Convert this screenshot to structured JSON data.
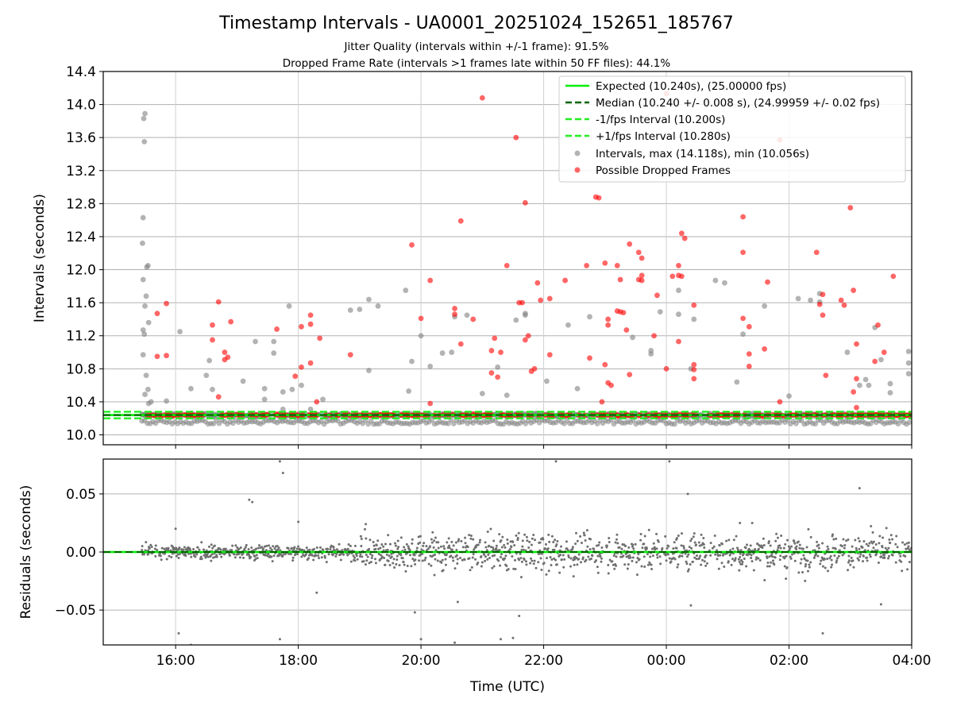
{
  "chart_data": [
    {
      "type": "scatter",
      "title": "Timestamp Intervals - UA0001_20251024_152651_185767",
      "subtitle_lines": [
        "Jitter Quality (intervals within +/-1 frame): 91.5%",
        "Dropped Frame Rate (intervals >1 frames late within 50 FF files): 44.1%"
      ],
      "xlabel": "",
      "ylabel": "Intervals (seconds)",
      "xlim_hours": [
        14.82,
        28.0
      ],
      "ylim": [
        9.88,
        14.4
      ],
      "yticks": [
        10.0,
        10.4,
        10.8,
        11.2,
        11.6,
        12.0,
        12.4,
        12.8,
        13.2,
        13.6,
        14.0,
        14.4
      ],
      "ytick_labels": [
        "10.0",
        "10.4",
        "10.8",
        "11.2",
        "11.6",
        "12.0",
        "12.4",
        "12.8",
        "13.2",
        "13.6",
        "14.0",
        "14.4"
      ],
      "grid": true,
      "legend_position": "top-right",
      "legend": [
        {
          "label": "Expected (10.240s), (25.00000 fps)",
          "style": "solid",
          "color": "#00ee00"
        },
        {
          "label": "Median (10.240 +/- 0.008 s), (24.99959 +/- 0.02 fps)",
          "style": "dashed",
          "color": "#006400"
        },
        {
          "label": "-1/fps Interval (10.200s)",
          "style": "dashed",
          "color": "#22ee22"
        },
        {
          "label": "+1/fps Interval (10.280s)",
          "style": "dashed",
          "color": "#22ee22"
        },
        {
          "label": "Intervals, max (14.118s), min (10.056s)",
          "style": "marker",
          "color": "#808080"
        },
        {
          "label": "Possible Dropped Frames",
          "style": "marker",
          "color": "#ff0000"
        }
      ],
      "reference_lines": {
        "expected": 10.24,
        "median": 10.24,
        "lower": 10.2,
        "upper": 10.28
      },
      "time_range_hours": [
        15.45,
        28.0
      ],
      "series": [
        {
          "name": "Intervals, max (14.118s), min (10.056s)",
          "color": "#808080",
          "points": [
            [
              15.5,
              13.89
            ],
            [
              15.48,
              13.83
            ],
            [
              15.49,
              13.55
            ],
            [
              15.47,
              12.63
            ],
            [
              15.46,
              12.32
            ],
            [
              15.55,
              12.05
            ],
            [
              15.53,
              12.03
            ],
            [
              15.47,
              11.88
            ],
            [
              15.52,
              11.68
            ],
            [
              15.5,
              11.56
            ],
            [
              15.56,
              11.36
            ],
            [
              15.47,
              11.27
            ],
            [
              15.49,
              11.22
            ],
            [
              15.47,
              10.97
            ],
            [
              15.52,
              10.72
            ],
            [
              15.55,
              10.55
            ],
            [
              15.5,
              10.49
            ],
            [
              15.56,
              10.38
            ],
            [
              15.6,
              10.4
            ],
            [
              15.85,
              10.41
            ],
            [
              16.07,
              11.25
            ],
            [
              16.25,
              10.56
            ],
            [
              16.5,
              10.72
            ],
            [
              16.6,
              10.55
            ],
            [
              16.55,
              10.9
            ],
            [
              17.1,
              10.65
            ],
            [
              17.3,
              11.13
            ],
            [
              17.45,
              10.56
            ],
            [
              17.45,
              10.43
            ],
            [
              17.6,
              11.13
            ],
            [
              17.6,
              10.99
            ],
            [
              17.75,
              10.31
            ],
            [
              17.75,
              10.52
            ],
            [
              17.85,
              11.56
            ],
            [
              17.9,
              10.55
            ],
            [
              18.05,
              10.6
            ],
            [
              18.2,
              10.31
            ],
            [
              18.4,
              10.43
            ],
            [
              18.85,
              11.51
            ],
            [
              19.0,
              11.52
            ],
            [
              19.15,
              11.64
            ],
            [
              19.15,
              10.78
            ],
            [
              19.3,
              11.56
            ],
            [
              19.75,
              11.75
            ],
            [
              19.8,
              10.53
            ],
            [
              19.85,
              10.89
            ],
            [
              20.0,
              11.2
            ],
            [
              20.15,
              10.83
            ],
            [
              20.35,
              10.99
            ],
            [
              20.55,
              11.43
            ],
            [
              20.5,
              11.0
            ],
            [
              20.75,
              11.45
            ],
            [
              21.0,
              10.5
            ],
            [
              21.25,
              10.82
            ],
            [
              21.4,
              10.48
            ],
            [
              21.55,
              11.39
            ],
            [
              21.7,
              11.47
            ],
            [
              21.7,
              11.45
            ],
            [
              22.05,
              10.65
            ],
            [
              22.4,
              11.33
            ],
            [
              22.55,
              10.56
            ],
            [
              22.75,
              11.43
            ],
            [
              23.45,
              11.18
            ],
            [
              23.75,
              11.02
            ],
            [
              23.75,
              10.98
            ],
            [
              23.9,
              11.49
            ],
            [
              24.2,
              11.46
            ],
            [
              24.2,
              11.75
            ],
            [
              24.45,
              11.4
            ],
            [
              24.4,
              10.8
            ],
            [
              24.8,
              11.87
            ],
            [
              24.95,
              11.84
            ],
            [
              25.15,
              10.64
            ],
            [
              25.25,
              11.22
            ],
            [
              25.6,
              11.56
            ],
            [
              26.0,
              10.47
            ],
            [
              26.15,
              11.65
            ],
            [
              26.35,
              11.63
            ],
            [
              26.5,
              11.61
            ],
            [
              26.5,
              11.71
            ],
            [
              26.95,
              11.0
            ],
            [
              27.15,
              10.6
            ],
            [
              27.25,
              10.67
            ],
            [
              27.3,
              10.6
            ],
            [
              27.4,
              11.3
            ],
            [
              27.5,
              10.91
            ],
            [
              27.65,
              10.51
            ],
            [
              27.65,
              10.62
            ],
            [
              27.95,
              11.01
            ],
            [
              27.95,
              10.87
            ],
            [
              27.95,
              10.74
            ]
          ]
        },
        {
          "name": "Possible Dropped Frames",
          "color": "#ff0000",
          "points": [
            [
              15.7,
              11.47
            ],
            [
              15.85,
              11.59
            ],
            [
              15.7,
              10.95
            ],
            [
              15.85,
              10.96
            ],
            [
              16.6,
              11.33
            ],
            [
              16.6,
              11.15
            ],
            [
              16.7,
              11.61
            ],
            [
              16.7,
              10.46
            ],
            [
              16.8,
              11.0
            ],
            [
              16.9,
              11.37
            ],
            [
              16.85,
              10.94
            ],
            [
              16.8,
              10.91
            ],
            [
              17.65,
              11.28
            ],
            [
              17.95,
              10.71
            ],
            [
              18.05,
              10.82
            ],
            [
              18.2,
              10.87
            ],
            [
              18.05,
              11.31
            ],
            [
              18.2,
              11.34
            ],
            [
              18.2,
              11.45
            ],
            [
              18.3,
              10.4
            ],
            [
              18.35,
              11.17
            ],
            [
              18.85,
              10.97
            ],
            [
              19.85,
              12.3
            ],
            [
              20.0,
              11.41
            ],
            [
              20.15,
              11.87
            ],
            [
              20.15,
              10.38
            ],
            [
              20.55,
              11.53
            ],
            [
              20.55,
              11.46
            ],
            [
              20.65,
              11.1
            ],
            [
              20.65,
              12.59
            ],
            [
              20.85,
              11.4
            ],
            [
              21.0,
              14.08
            ],
            [
              21.2,
              11.17
            ],
            [
              21.15,
              11.02
            ],
            [
              21.15,
              10.75
            ],
            [
              21.25,
              10.7
            ],
            [
              21.3,
              11.0
            ],
            [
              21.4,
              12.05
            ],
            [
              21.55,
              13.6
            ],
            [
              21.6,
              11.6
            ],
            [
              21.65,
              11.6
            ],
            [
              21.7,
              11.15
            ],
            [
              21.7,
              12.81
            ],
            [
              21.75,
              11.2
            ],
            [
              21.8,
              10.77
            ],
            [
              21.85,
              10.8
            ],
            [
              21.9,
              11.84
            ],
            [
              21.95,
              11.63
            ],
            [
              22.1,
              11.65
            ],
            [
              22.1,
              10.97
            ],
            [
              22.35,
              11.87
            ],
            [
              22.7,
              12.05
            ],
            [
              22.75,
              10.93
            ],
            [
              22.85,
              12.88
            ],
            [
              22.9,
              12.87
            ],
            [
              22.95,
              10.4
            ],
            [
              23.0,
              12.08
            ],
            [
              23.05,
              11.4
            ],
            [
              23.05,
              11.33
            ],
            [
              23.0,
              10.85
            ],
            [
              23.05,
              10.63
            ],
            [
              23.1,
              10.6
            ],
            [
              23.2,
              12.05
            ],
            [
              23.25,
              11.88
            ],
            [
              23.2,
              11.5
            ],
            [
              23.25,
              11.49
            ],
            [
              23.3,
              11.48
            ],
            [
              23.35,
              11.27
            ],
            [
              23.4,
              10.73
            ],
            [
              23.4,
              12.31
            ],
            [
              23.55,
              12.21
            ],
            [
              23.6,
              12.14
            ],
            [
              23.55,
              11.88
            ],
            [
              23.6,
              11.87
            ],
            [
              23.6,
              11.93
            ],
            [
              23.8,
              11.2
            ],
            [
              23.85,
              11.69
            ],
            [
              24.1,
              11.92
            ],
            [
              24.0,
              10.8
            ],
            [
              24.0,
              14.13
            ],
            [
              24.2,
              12.05
            ],
            [
              24.2,
              11.93
            ],
            [
              24.25,
              11.92
            ],
            [
              24.25,
              12.44
            ],
            [
              24.3,
              12.38
            ],
            [
              24.2,
              11.13
            ],
            [
              24.45,
              11.57
            ],
            [
              24.45,
              10.85
            ],
            [
              24.45,
              10.79
            ],
            [
              24.45,
              10.68
            ],
            [
              25.25,
              12.21
            ],
            [
              25.25,
              11.41
            ],
            [
              25.25,
              12.64
            ],
            [
              25.35,
              11.31
            ],
            [
              25.35,
              10.98
            ],
            [
              25.35,
              10.83
            ],
            [
              25.6,
              11.04
            ],
            [
              25.65,
              11.85
            ],
            [
              25.85,
              13.57
            ],
            [
              25.85,
              10.4
            ],
            [
              26.45,
              12.21
            ],
            [
              26.5,
              11.58
            ],
            [
              26.55,
              11.7
            ],
            [
              26.55,
              11.45
            ],
            [
              26.6,
              10.72
            ],
            [
              26.85,
              11.63
            ],
            [
              26.9,
              11.57
            ],
            [
              27.0,
              12.75
            ],
            [
              27.05,
              11.75
            ],
            [
              27.05,
              10.52
            ],
            [
              27.1,
              11.1
            ],
            [
              27.1,
              10.68
            ],
            [
              27.1,
              10.33
            ],
            [
              27.4,
              10.89
            ],
            [
              27.45,
              11.33
            ],
            [
              27.55,
              11.0
            ],
            [
              27.7,
              11.92
            ]
          ]
        }
      ]
    },
    {
      "type": "scatter",
      "xlabel": "Time (UTC)",
      "ylabel": "Residuals (seconds)",
      "xlim_hours": [
        14.82,
        28.0
      ],
      "ylim": [
        -0.08,
        0.08
      ],
      "yticks": [
        -0.05,
        0.0,
        0.05
      ],
      "ytick_labels": [
        "−0.05",
        "0.00",
        "0.05"
      ],
      "xticks_hours": [
        16,
        18,
        20,
        22,
        24,
        26,
        28
      ],
      "xtick_labels": [
        "16:00",
        "18:00",
        "20:00",
        "22:00",
        "00:00",
        "02:00",
        "04:00"
      ],
      "grid": true,
      "zero_line_color": "#00ee00",
      "series": [
        {
          "name": "Residuals",
          "color": "#707070",
          "outliers": [
            [
              17.7,
              0.078
            ],
            [
              17.75,
              0.068
            ],
            [
              17.2,
              0.045
            ],
            [
              17.25,
              0.043
            ],
            [
              18.0,
              0.026
            ],
            [
              16.0,
              0.02
            ],
            [
              19.1,
              0.024
            ],
            [
              19.9,
              -0.052
            ],
            [
              20.0,
              -0.075
            ],
            [
              20.6,
              -0.043
            ],
            [
              20.55,
              -0.078
            ],
            [
              21.6,
              -0.055
            ],
            [
              21.3,
              -0.075
            ],
            [
              21.5,
              -0.074
            ],
            [
              22.2,
              0.078
            ],
            [
              24.05,
              0.078
            ],
            [
              24.35,
              0.05
            ],
            [
              24.4,
              -0.046
            ],
            [
              25.2,
              0.025
            ],
            [
              25.4,
              0.025
            ],
            [
              26.55,
              -0.07
            ],
            [
              27.15,
              0.055
            ],
            [
              27.5,
              -0.045
            ],
            [
              17.7,
              -0.075
            ],
            [
              16.05,
              -0.07
            ],
            [
              16.25,
              -0.08
            ],
            [
              18.3,
              -0.035
            ]
          ]
        }
      ]
    }
  ]
}
